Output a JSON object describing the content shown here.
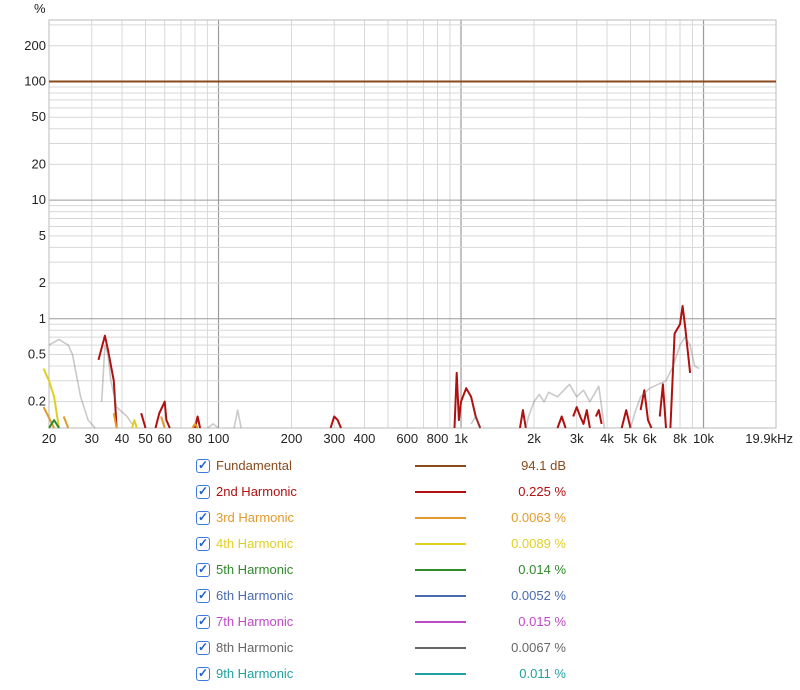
{
  "chart_data": {
    "type": "line",
    "xscale": "log",
    "yscale": "log",
    "xlim": [
      20,
      19900
    ],
    "ylim": [
      0.12,
      330
    ],
    "yunit_label": "%",
    "xticks": [
      {
        "v": 20,
        "label": "20"
      },
      {
        "v": 30,
        "label": "30"
      },
      {
        "v": 40,
        "label": "40"
      },
      {
        "v": 50,
        "label": "50"
      },
      {
        "v": 60,
        "label": "60"
      },
      {
        "v": 80,
        "label": "80"
      },
      {
        "v": 100,
        "label": "100"
      },
      {
        "v": 200,
        "label": "200"
      },
      {
        "v": 300,
        "label": "300"
      },
      {
        "v": 400,
        "label": "400"
      },
      {
        "v": 600,
        "label": "600"
      },
      {
        "v": 800,
        "label": "800"
      },
      {
        "v": 1000,
        "label": "1k"
      },
      {
        "v": 2000,
        "label": "2k"
      },
      {
        "v": 3000,
        "label": "3k"
      },
      {
        "v": 4000,
        "label": "4k"
      },
      {
        "v": 5000,
        "label": "5k"
      },
      {
        "v": 6000,
        "label": "6k"
      },
      {
        "v": 8000,
        "label": "8k"
      },
      {
        "v": 10000,
        "label": "10k"
      },
      {
        "v": 19900,
        "label": "19.9kHz"
      }
    ],
    "yticks": [
      {
        "v": 200,
        "label": "200"
      },
      {
        "v": 100,
        "label": "100"
      },
      {
        "v": 50,
        "label": "50"
      },
      {
        "v": 20,
        "label": "20"
      },
      {
        "v": 10,
        "label": "10"
      },
      {
        "v": 5,
        "label": "5"
      },
      {
        "v": 2,
        "label": "2"
      },
      {
        "v": 1,
        "label": "1"
      },
      {
        "v": 0.5,
        "label": "0.5"
      },
      {
        "v": 0.2,
        "label": "0.2"
      }
    ],
    "grid": true,
    "legend_position": "bottom",
    "series": [
      {
        "name": "Fundamental",
        "color": "#8b4a1c",
        "value_label": "94.1 dB",
        "points": [
          [
            20,
            100
          ],
          [
            19900,
            100
          ]
        ]
      },
      {
        "name": "2nd Harmonic",
        "color": "#b01010",
        "value_label": "0.225 %",
        "points": [
          [
            32,
            0.45
          ],
          [
            34,
            0.72
          ],
          [
            35,
            0.55
          ],
          [
            37,
            0.3
          ],
          [
            38,
            0.12
          ],
          null,
          [
            48,
            0.16
          ],
          [
            50,
            0.12
          ],
          null,
          [
            55,
            0.12
          ],
          [
            57,
            0.16
          ],
          [
            60,
            0.2
          ],
          [
            61,
            0.14
          ],
          [
            63,
            0.12
          ],
          null,
          [
            80,
            0.12
          ],
          [
            82,
            0.15
          ],
          [
            84,
            0.12
          ],
          null,
          [
            290,
            0.12
          ],
          [
            300,
            0.15
          ],
          [
            310,
            0.14
          ],
          [
            320,
            0.12
          ],
          null,
          [
            940,
            0.12
          ],
          [
            960,
            0.35
          ],
          [
            980,
            0.14
          ],
          [
            1000,
            0.2
          ],
          [
            1050,
            0.26
          ],
          [
            1100,
            0.22
          ],
          [
            1150,
            0.15
          ],
          [
            1200,
            0.12
          ],
          null,
          [
            1750,
            0.12
          ],
          [
            1800,
            0.17
          ],
          [
            1850,
            0.12
          ],
          null,
          [
            2500,
            0.12
          ],
          [
            2600,
            0.15
          ],
          [
            2700,
            0.12
          ],
          null,
          [
            2900,
            0.15
          ],
          [
            3000,
            0.18
          ],
          [
            3100,
            0.15
          ],
          [
            3200,
            0.13
          ],
          [
            3300,
            0.17
          ],
          [
            3400,
            0.12
          ],
          null,
          [
            3600,
            0.15
          ],
          [
            3700,
            0.17
          ],
          [
            3800,
            0.13
          ],
          null,
          [
            4600,
            0.12
          ],
          [
            4800,
            0.17
          ],
          [
            5000,
            0.12
          ],
          null,
          [
            5500,
            0.17
          ],
          [
            5700,
            0.25
          ],
          [
            5900,
            0.14
          ],
          [
            6100,
            0.12
          ],
          null,
          [
            6600,
            0.15
          ],
          [
            6800,
            0.28
          ],
          [
            7000,
            0.12
          ],
          null,
          [
            7300,
            0.12
          ],
          [
            7600,
            0.75
          ],
          [
            8000,
            0.9
          ],
          [
            8200,
            1.28
          ],
          [
            8400,
            0.85
          ],
          [
            8600,
            0.55
          ],
          [
            8800,
            0.35
          ]
        ]
      },
      {
        "name": "3rd Harmonic",
        "color": "#e29a2c",
        "value_label": "0.0063 %",
        "points": [
          [
            19,
            0.18
          ],
          [
            21,
            0.12
          ],
          null,
          [
            23,
            0.15
          ],
          [
            24,
            0.12
          ],
          null,
          [
            37,
            0.16
          ],
          [
            38,
            0.12
          ],
          null,
          [
            58,
            0.15
          ],
          [
            60,
            0.12
          ],
          null,
          [
            78,
            0.12
          ],
          [
            80,
            0.13
          ],
          [
            82,
            0.12
          ]
        ]
      },
      {
        "name": "4th Harmonic",
        "color": "#e0cf22",
        "value_label": "0.0089 %",
        "points": [
          [
            19,
            0.38
          ],
          [
            20,
            0.3
          ],
          [
            21,
            0.22
          ],
          [
            22,
            0.12
          ],
          null,
          [
            44,
            0.12
          ],
          [
            45,
            0.14
          ],
          [
            46,
            0.12
          ]
        ]
      },
      {
        "name": "5th Harmonic",
        "color": "#2f8a2a",
        "value_label": "0.014 %",
        "points": [
          [
            20,
            0.12
          ],
          [
            21,
            0.14
          ],
          [
            22,
            0.12
          ]
        ]
      },
      {
        "name": "6th Harmonic",
        "color": "#4a6ab0",
        "value_label": "0.0052 %",
        "points": []
      },
      {
        "name": "7th Harmonic",
        "color": "#c048c8",
        "value_label": "0.015 %",
        "points": []
      },
      {
        "name": "8th Harmonic",
        "color": "#666666",
        "value_label": "0.0067 %",
        "points": [
          [
            20,
            0.6
          ],
          [
            22,
            0.67
          ],
          [
            24,
            0.6
          ],
          [
            25,
            0.5
          ],
          [
            27,
            0.22
          ],
          [
            29,
            0.14
          ],
          [
            31,
            0.12
          ],
          null,
          [
            33,
            0.2
          ],
          [
            34,
            0.6
          ],
          [
            35,
            0.5
          ],
          [
            36,
            0.3
          ],
          [
            38,
            0.18
          ],
          [
            42,
            0.15
          ],
          [
            44,
            0.13
          ],
          null,
          [
            90,
            0.12
          ],
          [
            95,
            0.13
          ],
          [
            100,
            0.12
          ],
          null,
          [
            116,
            0.12
          ],
          [
            120,
            0.17
          ],
          [
            124,
            0.12
          ],
          null,
          [
            1100,
            0.13
          ],
          [
            1150,
            0.15
          ],
          [
            1200,
            0.12
          ],
          null,
          [
            1850,
            0.12
          ],
          [
            1900,
            0.15
          ],
          [
            2000,
            0.2
          ],
          [
            2100,
            0.23
          ],
          [
            2200,
            0.2
          ],
          [
            2300,
            0.24
          ],
          [
            2500,
            0.22
          ],
          [
            2800,
            0.28
          ],
          [
            3000,
            0.22
          ],
          [
            3200,
            0.25
          ],
          [
            3400,
            0.2
          ],
          [
            3700,
            0.27
          ],
          [
            3900,
            0.12
          ],
          null,
          [
            5000,
            0.12
          ],
          [
            5200,
            0.16
          ],
          [
            5500,
            0.22
          ],
          [
            6000,
            0.26
          ],
          [
            6500,
            0.28
          ],
          [
            7000,
            0.3
          ],
          [
            7500,
            0.4
          ],
          [
            8000,
            0.6
          ],
          [
            8400,
            0.7
          ],
          [
            8800,
            0.6
          ],
          [
            9200,
            0.4
          ],
          [
            9600,
            0.38
          ]
        ]
      },
      {
        "name": "9th Harmonic",
        "color": "#20a0a0",
        "value_label": "0.011 %",
        "points": []
      }
    ]
  }
}
